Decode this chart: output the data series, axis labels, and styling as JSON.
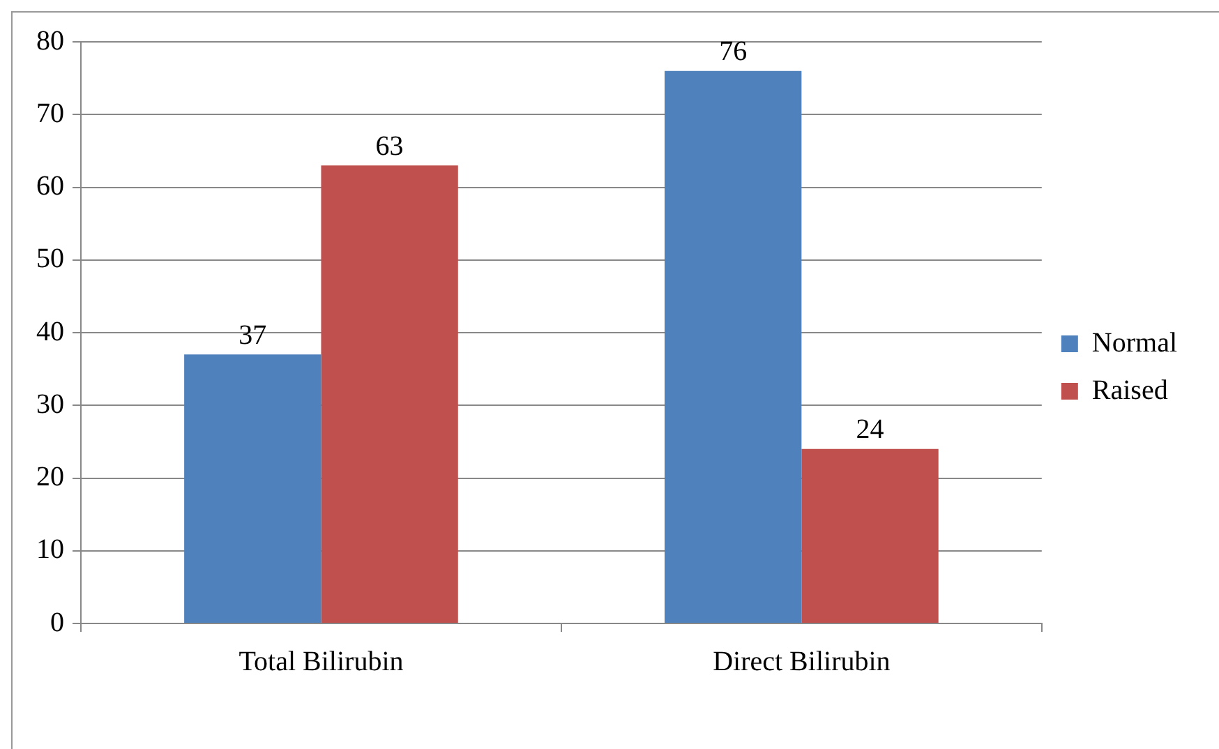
{
  "chart_data": {
    "type": "bar",
    "categories": [
      "Total Bilirubin",
      "Direct Bilirubin"
    ],
    "series": [
      {
        "name": "Normal",
        "color": "#4f81bd",
        "values": [
          37,
          76
        ]
      },
      {
        "name": "Raised",
        "color": "#c0504d",
        "values": [
          63,
          24
        ]
      }
    ],
    "ylim": [
      0,
      80
    ],
    "yticks": [
      0,
      10,
      20,
      30,
      40,
      50,
      60,
      70,
      80
    ],
    "grid": "y",
    "legend": "right",
    "data_labels": true
  }
}
